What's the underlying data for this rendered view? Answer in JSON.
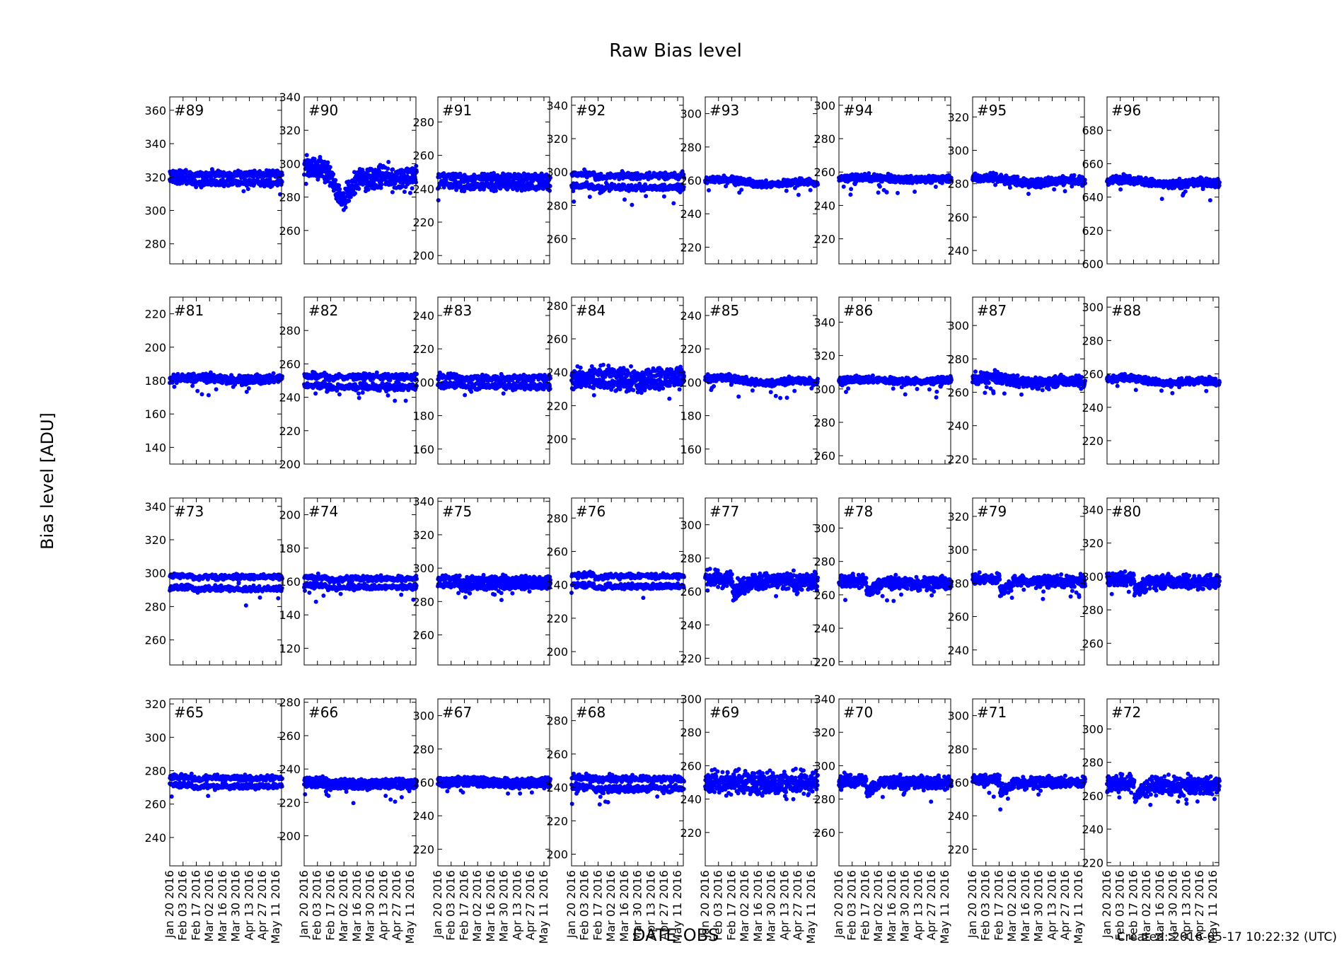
{
  "figure": {
    "title": "Raw Bias level",
    "ylabel": "Bias level [ADU]",
    "xlabel": "DATE-OBS",
    "created": "Created: 2016-05-17 10:22:32 (UTC)"
  },
  "colors": {
    "series": "#0000ff",
    "axes": "#000000",
    "background": "#ffffff"
  },
  "chart_data": [
    {
      "type": "scatter",
      "label": "#89",
      "ylim": [
        268,
        368
      ],
      "yticks": [
        280,
        300,
        320,
        340,
        360
      ],
      "base": 320,
      "levels": [
        -2.5,
        2.5
      ],
      "noise": 1.0,
      "pattern": "step_down"
    },
    {
      "type": "scatter",
      "label": "#90",
      "ylim": [
        240,
        340
      ],
      "yticks": [
        260,
        280,
        300,
        320,
        340
      ],
      "base": 292,
      "levels": [
        -2,
        2
      ],
      "noise": 2.5,
      "pattern": "dip"
    },
    {
      "type": "scatter",
      "label": "#91",
      "ylim": [
        195,
        295
      ],
      "yticks": [
        200,
        220,
        240,
        260,
        280
      ],
      "base": 245,
      "levels": [
        -2.5,
        2.5
      ],
      "noise": 1.2,
      "pattern": "step_down"
    },
    {
      "type": "scatter",
      "label": "#92",
      "ylim": [
        245,
        345
      ],
      "yticks": [
        260,
        280,
        300,
        320,
        340
      ],
      "base": 295,
      "levels": [
        -3.5,
        3.5
      ],
      "noise": 1.0,
      "pattern": "step_down"
    },
    {
      "type": "scatter",
      "label": "#93",
      "ylim": [
        210,
        310
      ],
      "yticks": [
        220,
        240,
        260,
        280,
        300
      ],
      "base": 260,
      "levels": [
        0
      ],
      "noise": 1.0,
      "pattern": "drift"
    },
    {
      "type": "scatter",
      "label": "#94",
      "ylim": [
        205,
        305
      ],
      "yticks": [
        220,
        240,
        260,
        280,
        300
      ],
      "base": 256,
      "levels": [
        0
      ],
      "noise": 1.0,
      "pattern": "flat"
    },
    {
      "type": "scatter",
      "label": "#95",
      "ylim": [
        232,
        332
      ],
      "yticks": [
        240,
        260,
        280,
        300,
        320
      ],
      "base": 283,
      "levels": [
        0
      ],
      "noise": 1.3,
      "pattern": "drift"
    },
    {
      "type": "scatter",
      "label": "#96",
      "ylim": [
        600,
        700
      ],
      "yticks": [
        600,
        620,
        640,
        660,
        680
      ],
      "base": 650,
      "levels": [
        0
      ],
      "noise": 1.2,
      "pattern": "drift"
    },
    {
      "type": "scatter",
      "label": "#81",
      "ylim": [
        130,
        230
      ],
      "yticks": [
        140,
        160,
        180,
        200,
        220
      ],
      "base": 181,
      "levels": [
        0
      ],
      "noise": 1.3,
      "pattern": "flat"
    },
    {
      "type": "scatter",
      "label": "#82",
      "ylim": [
        200,
        300
      ],
      "yticks": [
        200,
        220,
        240,
        260,
        280
      ],
      "base": 250,
      "levels": [
        -3,
        3
      ],
      "noise": 1.0,
      "pattern": "step_down"
    },
    {
      "type": "scatter",
      "label": "#83",
      "ylim": [
        151,
        251
      ],
      "yticks": [
        160,
        180,
        200,
        220,
        240
      ],
      "base": 201,
      "levels": [
        -2.5,
        2.5
      ],
      "noise": 1.0,
      "pattern": "step_down"
    },
    {
      "type": "scatter",
      "label": "#84",
      "ylim": [
        185,
        285
      ],
      "yticks": [
        200,
        220,
        240,
        260,
        280
      ],
      "base": 236,
      "levels": [
        -3,
        3
      ],
      "noise": 2.0,
      "pattern": "flat"
    },
    {
      "type": "scatter",
      "label": "#85",
      "ylim": [
        151,
        251
      ],
      "yticks": [
        160,
        180,
        200,
        220,
        240
      ],
      "base": 202,
      "levels": [
        0
      ],
      "noise": 1.0,
      "pattern": "drift"
    },
    {
      "type": "scatter",
      "label": "#86",
      "ylim": [
        255,
        355
      ],
      "yticks": [
        260,
        280,
        300,
        320,
        340
      ],
      "base": 305,
      "levels": [
        0
      ],
      "noise": 1.0,
      "pattern": "flat"
    },
    {
      "type": "scatter",
      "label": "#87",
      "ylim": [
        217,
        317
      ],
      "yticks": [
        220,
        240,
        260,
        280,
        300
      ],
      "base": 268,
      "levels": [
        0
      ],
      "noise": 1.6,
      "pattern": "drift"
    },
    {
      "type": "scatter",
      "label": "#88",
      "ylim": [
        206,
        306
      ],
      "yticks": [
        220,
        240,
        260,
        280,
        300
      ],
      "base": 257,
      "levels": [
        0
      ],
      "noise": 1.0,
      "pattern": "drift"
    },
    {
      "type": "scatter",
      "label": "#73",
      "ylim": [
        245,
        345
      ],
      "yticks": [
        260,
        280,
        300,
        320,
        340
      ],
      "base": 295,
      "levels": [
        -3.5,
        3.5
      ],
      "noise": 0.8,
      "pattern": "step_down"
    },
    {
      "type": "scatter",
      "label": "#74",
      "ylim": [
        110,
        210
      ],
      "yticks": [
        120,
        140,
        160,
        180,
        200
      ],
      "base": 160,
      "levels": [
        -2.5,
        2.5
      ],
      "noise": 0.8,
      "pattern": "step_down"
    },
    {
      "type": "scatter",
      "label": "#75",
      "ylim": [
        242,
        342
      ],
      "yticks": [
        260,
        280,
        300,
        320,
        340
      ],
      "base": 292,
      "levels": [
        -2,
        2
      ],
      "noise": 1.0,
      "pattern": "step_down"
    },
    {
      "type": "scatter",
      "label": "#76",
      "ylim": [
        192,
        292
      ],
      "yticks": [
        200,
        220,
        240,
        260,
        280
      ],
      "base": 243,
      "levels": [
        -3,
        3
      ],
      "noise": 0.8,
      "pattern": "step_down"
    },
    {
      "type": "scatter",
      "label": "#77",
      "ylim": [
        216,
        316
      ],
      "yticks": [
        220,
        240,
        260,
        280,
        300
      ],
      "base": 266,
      "levels": [
        0
      ],
      "noise": 2.5,
      "pattern": "dip_small"
    },
    {
      "type": "scatter",
      "label": "#78",
      "ylim": [
        218,
        318
      ],
      "yticks": [
        220,
        240,
        260,
        280,
        300
      ],
      "base": 267,
      "levels": [
        0
      ],
      "noise": 1.8,
      "pattern": "dip_small"
    },
    {
      "type": "scatter",
      "label": "#79",
      "ylim": [
        231,
        331
      ],
      "yticks": [
        240,
        260,
        280,
        300,
        320
      ],
      "base": 281,
      "levels": [
        0
      ],
      "noise": 1.6,
      "pattern": "dip_small"
    },
    {
      "type": "scatter",
      "label": "#80",
      "ylim": [
        247,
        347
      ],
      "yticks": [
        260,
        280,
        300,
        320,
        340
      ],
      "base": 297,
      "levels": [
        0
      ],
      "noise": 2.0,
      "pattern": "dip_small"
    },
    {
      "type": "scatter",
      "label": "#65",
      "ylim": [
        223,
        323
      ],
      "yticks": [
        240,
        260,
        280,
        300,
        320
      ],
      "base": 274,
      "levels": [
        -2.5,
        2.5
      ],
      "noise": 0.8,
      "pattern": "step_down"
    },
    {
      "type": "scatter",
      "label": "#66",
      "ylim": [
        182,
        282
      ],
      "yticks": [
        200,
        220,
        240,
        260,
        280
      ],
      "base": 232,
      "levels": [
        -1.5,
        1.5
      ],
      "noise": 0.8,
      "pattern": "step_down"
    },
    {
      "type": "scatter",
      "label": "#67",
      "ylim": [
        210,
        310
      ],
      "yticks": [
        220,
        240,
        260,
        280,
        300
      ],
      "base": 260,
      "levels": [
        -1.5,
        1.5
      ],
      "noise": 0.8,
      "pattern": "flat"
    },
    {
      "type": "scatter",
      "label": "#68",
      "ylim": [
        193,
        293
      ],
      "yticks": [
        200,
        220,
        240,
        260,
        280
      ],
      "base": 243,
      "levels": [
        -3,
        3
      ],
      "noise": 1.0,
      "pattern": "step_down"
    },
    {
      "type": "scatter",
      "label": "#69",
      "ylim": [
        200,
        300
      ],
      "yticks": [
        220,
        240,
        260,
        280,
        300
      ],
      "base": 250,
      "levels": [
        0
      ],
      "noise": 3.5,
      "pattern": "flat"
    },
    {
      "type": "scatter",
      "label": "#70",
      "ylim": [
        240,
        340
      ],
      "yticks": [
        260,
        280,
        300,
        320,
        340
      ],
      "base": 290,
      "levels": [
        0
      ],
      "noise": 1.8,
      "pattern": "dip_small"
    },
    {
      "type": "scatter",
      "label": "#71",
      "ylim": [
        210,
        310
      ],
      "yticks": [
        220,
        240,
        260,
        280,
        300
      ],
      "base": 260,
      "levels": [
        0
      ],
      "noise": 1.6,
      "pattern": "dip_small"
    },
    {
      "type": "scatter",
      "label": "#72",
      "ylim": [
        218,
        318
      ],
      "yticks": [
        220,
        240,
        260,
        280,
        300
      ],
      "base": 266,
      "levels": [
        0
      ],
      "noise": 2.5,
      "pattern": "dip_small"
    }
  ],
  "x_axis": {
    "start": "2016-01-20",
    "end": "2016-05-17",
    "ticks": [
      "Jan 20 2016",
      "Feb 03 2016",
      "Feb 17 2016",
      "Mar 02 2016",
      "Mar 16 2016",
      "Mar 30 2016",
      "Apr 13 2016",
      "Apr 27 2016",
      "May 11 2016"
    ]
  }
}
